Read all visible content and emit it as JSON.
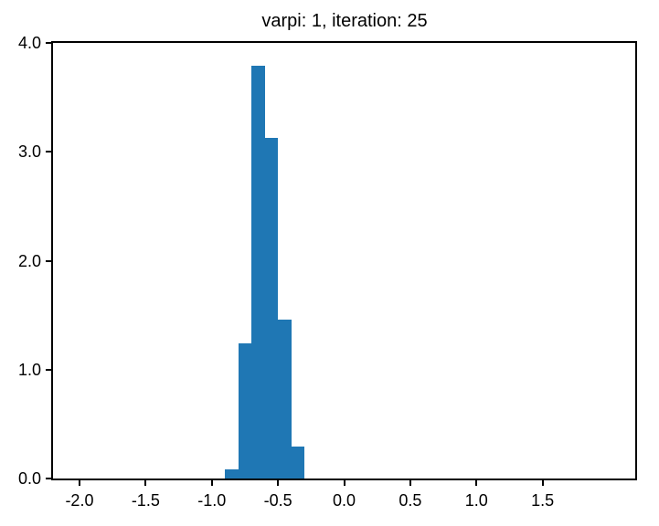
{
  "figure": {
    "title": "varpi: 1, iteration: 25",
    "background_color": "#ffffff",
    "text_color": "#000000"
  },
  "chart_data": {
    "type": "bar",
    "subtype": "histogram-density",
    "title": "varpi: 1, iteration: 25",
    "xlabel": "",
    "ylabel": "",
    "bin_edges": [
      -0.9,
      -0.8,
      -0.7,
      -0.6,
      -0.5,
      -0.4,
      -0.3
    ],
    "densities": [
      0.08,
      1.24,
      3.79,
      3.13,
      1.46,
      0.29
    ],
    "bar_color": "#1f77b4",
    "xlim": [
      -2.2,
      2.2
    ],
    "ylim": [
      0.0,
      4.0
    ],
    "xtick_values": [
      -2.0,
      -1.5,
      -1.0,
      -0.5,
      0.0,
      0.5,
      1.0,
      1.5
    ],
    "xtick_labels": [
      "-2.0",
      "-1.5",
      "-1.0",
      "-0.5",
      "0.0",
      "0.5",
      "1.0",
      "1.5"
    ],
    "ytick_values": [
      0.0,
      1.0,
      2.0,
      3.0,
      4.0
    ],
    "ytick_labels": [
      "0.0",
      "1.0",
      "2.0",
      "3.0",
      "4.0"
    ],
    "grid": false,
    "legend": null
  }
}
